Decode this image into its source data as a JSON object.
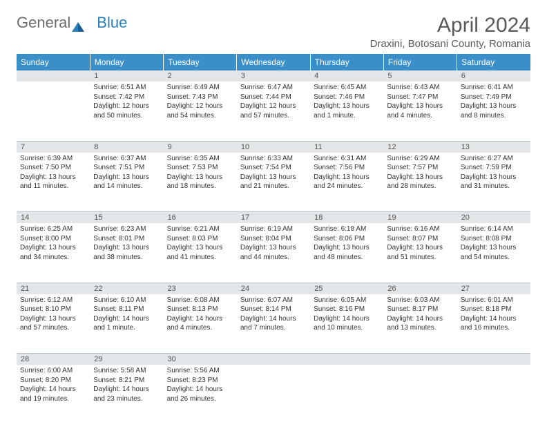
{
  "logo": {
    "text1": "General",
    "text2": "Blue"
  },
  "title": "April 2024",
  "location": "Draxini, Botosani County, Romania",
  "colors": {
    "header_bg": "#3a8fc9",
    "header_text": "#ffffff",
    "daynum_bg": "#e2e6e9",
    "grid_line": "#b8c4cc",
    "text": "#333333",
    "title_text": "#5a5a5a",
    "logo_grey": "#6b6b6b",
    "logo_blue": "#2a7fbf"
  },
  "weekdays": [
    "Sunday",
    "Monday",
    "Tuesday",
    "Wednesday",
    "Thursday",
    "Friday",
    "Saturday"
  ],
  "weeks": [
    {
      "nums": [
        "",
        "1",
        "2",
        "3",
        "4",
        "5",
        "6"
      ],
      "cells": [
        {
          "lines": []
        },
        {
          "lines": [
            "Sunrise: 6:51 AM",
            "Sunset: 7:42 PM",
            "Daylight: 12 hours",
            "and 50 minutes."
          ]
        },
        {
          "lines": [
            "Sunrise: 6:49 AM",
            "Sunset: 7:43 PM",
            "Daylight: 12 hours",
            "and 54 minutes."
          ]
        },
        {
          "lines": [
            "Sunrise: 6:47 AM",
            "Sunset: 7:44 PM",
            "Daylight: 12 hours",
            "and 57 minutes."
          ]
        },
        {
          "lines": [
            "Sunrise: 6:45 AM",
            "Sunset: 7:46 PM",
            "Daylight: 13 hours",
            "and 1 minute."
          ]
        },
        {
          "lines": [
            "Sunrise: 6:43 AM",
            "Sunset: 7:47 PM",
            "Daylight: 13 hours",
            "and 4 minutes."
          ]
        },
        {
          "lines": [
            "Sunrise: 6:41 AM",
            "Sunset: 7:49 PM",
            "Daylight: 13 hours",
            "and 8 minutes."
          ]
        }
      ]
    },
    {
      "nums": [
        "7",
        "8",
        "9",
        "10",
        "11",
        "12",
        "13"
      ],
      "cells": [
        {
          "lines": [
            "Sunrise: 6:39 AM",
            "Sunset: 7:50 PM",
            "Daylight: 13 hours",
            "and 11 minutes."
          ]
        },
        {
          "lines": [
            "Sunrise: 6:37 AM",
            "Sunset: 7:51 PM",
            "Daylight: 13 hours",
            "and 14 minutes."
          ]
        },
        {
          "lines": [
            "Sunrise: 6:35 AM",
            "Sunset: 7:53 PM",
            "Daylight: 13 hours",
            "and 18 minutes."
          ]
        },
        {
          "lines": [
            "Sunrise: 6:33 AM",
            "Sunset: 7:54 PM",
            "Daylight: 13 hours",
            "and 21 minutes."
          ]
        },
        {
          "lines": [
            "Sunrise: 6:31 AM",
            "Sunset: 7:56 PM",
            "Daylight: 13 hours",
            "and 24 minutes."
          ]
        },
        {
          "lines": [
            "Sunrise: 6:29 AM",
            "Sunset: 7:57 PM",
            "Daylight: 13 hours",
            "and 28 minutes."
          ]
        },
        {
          "lines": [
            "Sunrise: 6:27 AM",
            "Sunset: 7:59 PM",
            "Daylight: 13 hours",
            "and 31 minutes."
          ]
        }
      ]
    },
    {
      "nums": [
        "14",
        "15",
        "16",
        "17",
        "18",
        "19",
        "20"
      ],
      "cells": [
        {
          "lines": [
            "Sunrise: 6:25 AM",
            "Sunset: 8:00 PM",
            "Daylight: 13 hours",
            "and 34 minutes."
          ]
        },
        {
          "lines": [
            "Sunrise: 6:23 AM",
            "Sunset: 8:01 PM",
            "Daylight: 13 hours",
            "and 38 minutes."
          ]
        },
        {
          "lines": [
            "Sunrise: 6:21 AM",
            "Sunset: 8:03 PM",
            "Daylight: 13 hours",
            "and 41 minutes."
          ]
        },
        {
          "lines": [
            "Sunrise: 6:19 AM",
            "Sunset: 8:04 PM",
            "Daylight: 13 hours",
            "and 44 minutes."
          ]
        },
        {
          "lines": [
            "Sunrise: 6:18 AM",
            "Sunset: 8:06 PM",
            "Daylight: 13 hours",
            "and 48 minutes."
          ]
        },
        {
          "lines": [
            "Sunrise: 6:16 AM",
            "Sunset: 8:07 PM",
            "Daylight: 13 hours",
            "and 51 minutes."
          ]
        },
        {
          "lines": [
            "Sunrise: 6:14 AM",
            "Sunset: 8:08 PM",
            "Daylight: 13 hours",
            "and 54 minutes."
          ]
        }
      ]
    },
    {
      "nums": [
        "21",
        "22",
        "23",
        "24",
        "25",
        "26",
        "27"
      ],
      "cells": [
        {
          "lines": [
            "Sunrise: 6:12 AM",
            "Sunset: 8:10 PM",
            "Daylight: 13 hours",
            "and 57 minutes."
          ]
        },
        {
          "lines": [
            "Sunrise: 6:10 AM",
            "Sunset: 8:11 PM",
            "Daylight: 14 hours",
            "and 1 minute."
          ]
        },
        {
          "lines": [
            "Sunrise: 6:08 AM",
            "Sunset: 8:13 PM",
            "Daylight: 14 hours",
            "and 4 minutes."
          ]
        },
        {
          "lines": [
            "Sunrise: 6:07 AM",
            "Sunset: 8:14 PM",
            "Daylight: 14 hours",
            "and 7 minutes."
          ]
        },
        {
          "lines": [
            "Sunrise: 6:05 AM",
            "Sunset: 8:16 PM",
            "Daylight: 14 hours",
            "and 10 minutes."
          ]
        },
        {
          "lines": [
            "Sunrise: 6:03 AM",
            "Sunset: 8:17 PM",
            "Daylight: 14 hours",
            "and 13 minutes."
          ]
        },
        {
          "lines": [
            "Sunrise: 6:01 AM",
            "Sunset: 8:18 PM",
            "Daylight: 14 hours",
            "and 16 minutes."
          ]
        }
      ]
    },
    {
      "nums": [
        "28",
        "29",
        "30",
        "",
        "",
        "",
        ""
      ],
      "cells": [
        {
          "lines": [
            "Sunrise: 6:00 AM",
            "Sunset: 8:20 PM",
            "Daylight: 14 hours",
            "and 19 minutes."
          ]
        },
        {
          "lines": [
            "Sunrise: 5:58 AM",
            "Sunset: 8:21 PM",
            "Daylight: 14 hours",
            "and 23 minutes."
          ]
        },
        {
          "lines": [
            "Sunrise: 5:56 AM",
            "Sunset: 8:23 PM",
            "Daylight: 14 hours",
            "and 26 minutes."
          ]
        },
        {
          "lines": []
        },
        {
          "lines": []
        },
        {
          "lines": []
        },
        {
          "lines": []
        }
      ]
    }
  ]
}
